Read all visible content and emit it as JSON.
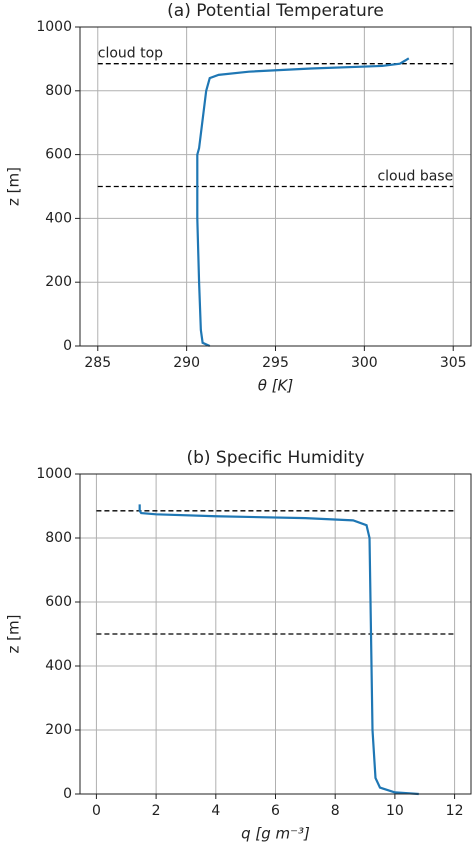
{
  "chart_data": [
    {
      "type": "line",
      "title": "(a) Potential Temperature",
      "xlabel": "θ [K]",
      "ylabel": "z [m]",
      "xlim": [
        284,
        306
      ],
      "ylim": [
        0,
        1000
      ],
      "xticks": [
        285,
        290,
        295,
        300,
        305
      ],
      "yticks": [
        0,
        200,
        400,
        600,
        800,
        1000
      ],
      "grid": true,
      "series": [
        {
          "color": "#1f77b4",
          "x": [
            291.3,
            290.9,
            290.8,
            290.7,
            290.6,
            290.6,
            290.7,
            291.1,
            291.3,
            291.8,
            293.5,
            297,
            301,
            302,
            302.3,
            302.5
          ],
          "y": [
            0,
            10,
            50,
            200,
            400,
            600,
            620,
            800,
            840,
            850,
            860,
            870,
            878,
            885,
            895,
            902
          ]
        }
      ],
      "hlines": [
        {
          "value": 885,
          "label": "cloud top"
        },
        {
          "value": 500,
          "label": "cloud base"
        }
      ]
    },
    {
      "type": "line",
      "title": "(b) Specific Humidity",
      "xlabel": "q [g m⁻³]",
      "ylabel": "z [m]",
      "xlim": [
        -0.55,
        12.55
      ],
      "ylim": [
        0,
        1000
      ],
      "xticks": [
        0,
        2,
        4,
        6,
        8,
        10,
        12
      ],
      "yticks": [
        0,
        200,
        400,
        600,
        800,
        1000
      ],
      "grid": true,
      "series": [
        {
          "color": "#1f77b4",
          "x": [
            10.8,
            10,
            9.5,
            9.35,
            9.25,
            9.2,
            9.15,
            9.05,
            8.6,
            7,
            4,
            2,
            1.5,
            1.45,
            1.45
          ],
          "y": [
            0,
            5,
            20,
            50,
            200,
            500,
            800,
            840,
            855,
            862,
            868,
            874,
            878,
            885,
            905
          ]
        }
      ],
      "hlines": [
        {
          "value": 885
        },
        {
          "value": 500
        }
      ]
    }
  ]
}
